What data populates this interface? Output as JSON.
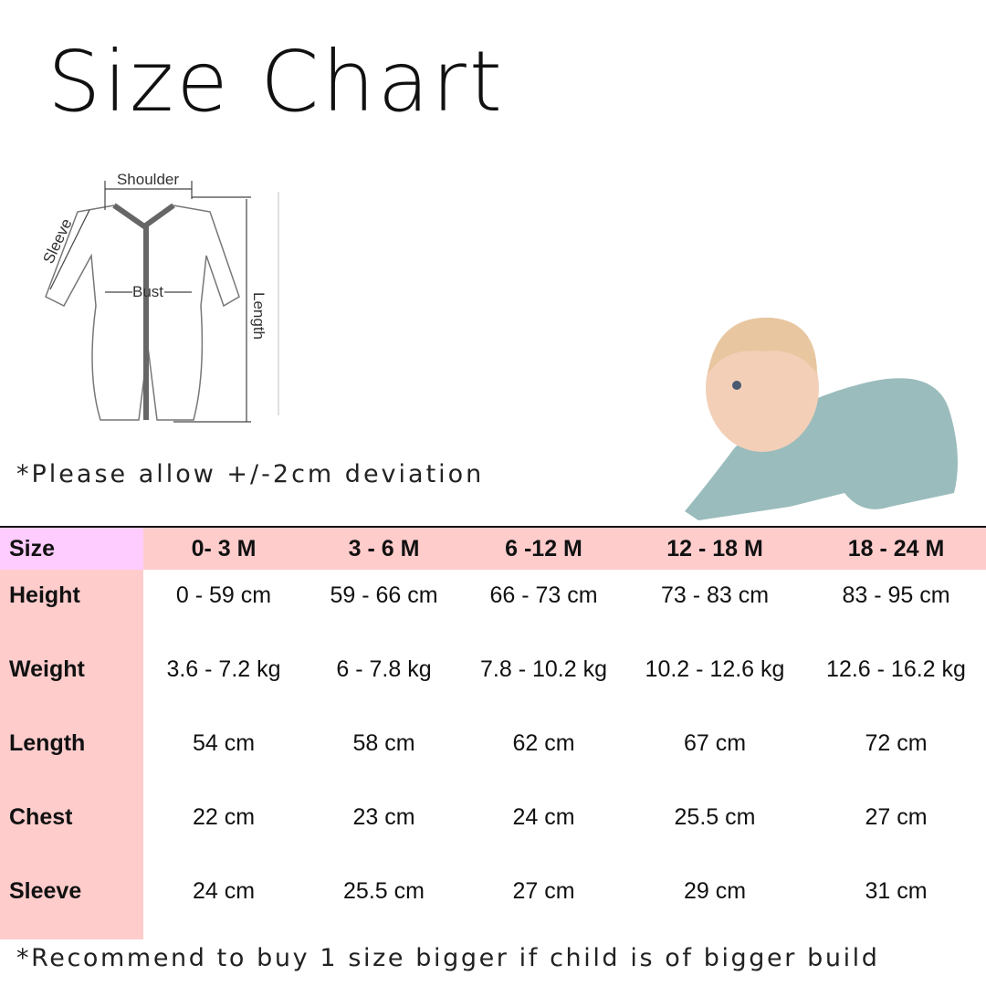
{
  "title": "Size Chart",
  "diagram": {
    "labels": {
      "shoulder": "Shoulder",
      "sleeve": "Sleeve",
      "bust": "Bust",
      "length": "Length"
    }
  },
  "note_deviation": "*Please allow +/-2cm deviation",
  "table": {
    "header": [
      "Size",
      "0- 3 M",
      "3 - 6 M",
      "6 -12 M",
      "12 - 18 M",
      "18 - 24 M"
    ],
    "rows": [
      [
        "Height",
        "0 - 59 cm",
        "59 - 66 cm",
        "66 - 73 cm",
        "73 - 83 cm",
        "83 - 95 cm"
      ],
      [
        "Weight",
        "3.6 - 7.2 kg",
        "6 - 7.8 kg",
        "7.8 - 10.2 kg",
        "10.2 - 12.6 kg",
        "12.6 - 16.2 kg"
      ],
      [
        "Length",
        "54 cm",
        "58 cm",
        "62 cm",
        "67 cm",
        "72 cm"
      ],
      [
        "Chest",
        "22 cm",
        "23 cm",
        "24 cm",
        "25.5 cm",
        "27 cm"
      ],
      [
        "Sleeve",
        "24 cm",
        "25.5 cm",
        "27 cm",
        "29 cm",
        "31 cm"
      ]
    ]
  },
  "note_recommend": "*Recommend to buy 1 size bigger if child is of bigger build",
  "colors": {
    "header_bg": "#ffcccc",
    "size_cell_bg": "#ffccff",
    "label_col_bg": "#ffcccc"
  }
}
